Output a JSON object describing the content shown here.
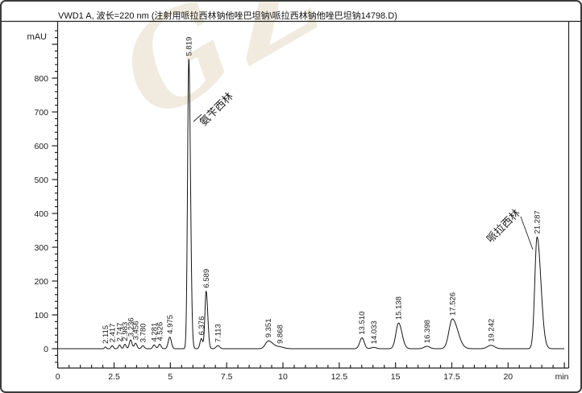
{
  "window": {
    "title": "VWD1 A, 波长=220 nm (注射用哌拉西林钠他唑巴坦钠\\哌拉西林钠他唑巴坦钠14798.D)"
  },
  "watermark_text": "GZ",
  "chart_data": {
    "type": "line",
    "title": "VWD1 A, 波长=220 nm (注射用哌拉西林钠他唑巴坦钠\\哌拉西林钠他唑巴坦钠14798.D)",
    "y_axis_unit": "mAU",
    "x_axis_unit": "min",
    "xlim": [
      0,
      22.5
    ],
    "ylim": [
      -57,
      960
    ],
    "x_major_step": 2.5,
    "x_minor_step": 0.5,
    "y_major_step": 100,
    "y_minor_step": 20,
    "x_tick_labels": [
      "0",
      "2.5",
      "5",
      "7.5",
      "10",
      "12.5",
      "15",
      "17.5",
      "20"
    ],
    "y_tick_labels": [
      "0",
      "100",
      "200",
      "300",
      "400",
      "500",
      "600",
      "700",
      "800"
    ],
    "baseline_mau": 0,
    "peaks": [
      {
        "rt": 2.115,
        "height_mau": 5,
        "sigma": 0.04,
        "label": "2.115"
      },
      {
        "rt": 2.417,
        "height_mau": 9,
        "sigma": 0.05,
        "label": "2.417"
      },
      {
        "rt": 2.747,
        "height_mau": 11,
        "sigma": 0.05,
        "label": "2.747"
      },
      {
        "rt": 2.983,
        "height_mau": 13,
        "sigma": 0.05,
        "label": "2.983"
      },
      {
        "rt": 3.236,
        "height_mau": 26,
        "sigma": 0.06,
        "label": "3.236"
      },
      {
        "rt": 3.456,
        "height_mau": 16,
        "sigma": 0.06,
        "label": "3.456"
      },
      {
        "rt": 3.78,
        "height_mau": 9,
        "sigma": 0.06,
        "label": "3.780"
      },
      {
        "rt": 4.281,
        "height_mau": 11,
        "sigma": 0.06,
        "label": "4.281"
      },
      {
        "rt": 4.526,
        "height_mau": 13,
        "sigma": 0.06,
        "label": "4.526"
      },
      {
        "rt": 4.975,
        "height_mau": 34,
        "sigma": 0.07,
        "label": "4.975"
      },
      {
        "rt": 5.819,
        "height_mau": 856,
        "sigma": 0.055,
        "tail": 1.35,
        "label": "5.819"
      },
      {
        "rt": 6.376,
        "height_mau": 30,
        "sigma": 0.06,
        "label": "6.376"
      },
      {
        "rt": 6.589,
        "height_mau": 170,
        "sigma": 0.055,
        "tail": 1.3,
        "label": "6.589"
      },
      {
        "rt": 7.113,
        "height_mau": 9,
        "sigma": 0.08,
        "label": "7.113"
      },
      {
        "rt": 9.351,
        "height_mau": 23,
        "sigma": 0.13,
        "tail": 1.6,
        "label": "9.351"
      },
      {
        "rt": 9.868,
        "height_mau": 5,
        "sigma": 0.18,
        "label": "9.868"
      },
      {
        "rt": 13.51,
        "height_mau": 32,
        "sigma": 0.1,
        "label": "13.510"
      },
      {
        "rt": 14.033,
        "height_mau": 4,
        "sigma": 0.11,
        "label": "14.033"
      },
      {
        "rt": 15.138,
        "height_mau": 76,
        "sigma": 0.12,
        "tail": 1.25,
        "label": "15.138"
      },
      {
        "rt": 16.398,
        "height_mau": 7,
        "sigma": 0.13,
        "label": "16.398"
      },
      {
        "rt": 17.526,
        "height_mau": 88,
        "sigma": 0.15,
        "tail": 1.6,
        "label": "17.526"
      },
      {
        "rt": 19.242,
        "height_mau": 10,
        "sigma": 0.16,
        "label": "19.242"
      },
      {
        "rt": 21.287,
        "height_mau": 330,
        "sigma": 0.1,
        "tail": 1.7,
        "label": "21.287"
      }
    ],
    "annotations": [
      {
        "text": "氨苄西林",
        "rt": 5.819
      },
      {
        "text": "哌拉西林",
        "rt": 21.287
      }
    ]
  }
}
